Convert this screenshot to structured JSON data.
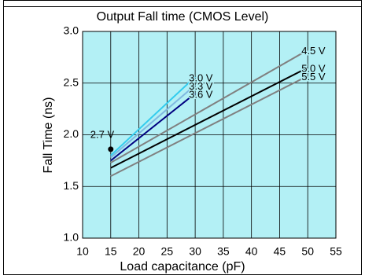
{
  "chart_data": {
    "type": "line",
    "title": "Output Fall time (CMOS Level)",
    "x_label": "Load capacitance (pF)",
    "y_label": "Fall Time (ns)",
    "xlim": [
      10,
      55
    ],
    "xticks": [
      10,
      15,
      20,
      25,
      30,
      35,
      40,
      45,
      50,
      55
    ],
    "ylim": [
      1.0,
      3.0
    ],
    "yticks": [
      {
        "value": 1.0,
        "label": "1.0"
      },
      1.5,
      {
        "value": 2.0,
        "label": "2.0"
      },
      2.5,
      {
        "value": 3.0,
        "label": "3.0"
      }
    ],
    "grid": true,
    "background": "#b3f0f5",
    "series": [
      {
        "name": "2.7 V",
        "color": "#000000",
        "x": [
          15
        ],
        "values": [
          1.86
        ]
      },
      {
        "name": "3.0 V",
        "color": "#33ccee",
        "x": [
          15,
          30
        ],
        "values": [
          1.8,
          2.56
        ]
      },
      {
        "name": "3.3 V",
        "color": "#7fb8e0",
        "x": [
          15,
          30
        ],
        "values": [
          1.78,
          2.48
        ]
      },
      {
        "name": "3.6 V",
        "color": "#000080",
        "x": [
          15,
          30
        ],
        "values": [
          1.75,
          2.4
        ]
      },
      {
        "name": "4.5 V",
        "color": "#808080",
        "x": [
          15,
          50
        ],
        "values": [
          1.73,
          2.82
        ]
      },
      {
        "name": "5.0 V",
        "color": "#000000",
        "x": [
          15,
          50
        ],
        "values": [
          1.68,
          2.65
        ]
      },
      {
        "name": "5.5 V",
        "color": "#808080",
        "x": [
          15,
          50
        ],
        "values": [
          1.6,
          2.57
        ]
      }
    ]
  }
}
